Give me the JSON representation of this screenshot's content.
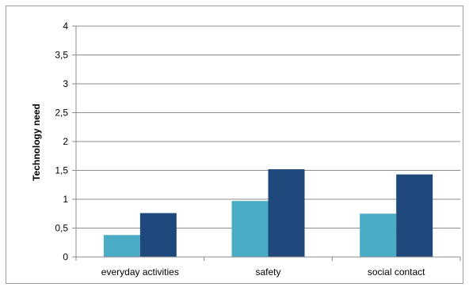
{
  "chart_data": {
    "type": "bar",
    "title": "",
    "xlabel": "",
    "ylabel": "Technology need",
    "categories": [
      "everyday activities",
      "safety",
      "social contact"
    ],
    "series": [
      {
        "values": [
          0.38,
          0.97,
          0.75
        ],
        "color": "#4bacc6"
      },
      {
        "values": [
          0.76,
          1.52,
          1.43
        ],
        "color": "#1f497d"
      }
    ],
    "ylim": [
      0,
      4
    ],
    "yticks": [
      "0",
      "0,5",
      "1",
      "1,5",
      "2",
      "2,5",
      "3",
      "3,5",
      "4"
    ],
    "grid": true,
    "legend": "none"
  }
}
